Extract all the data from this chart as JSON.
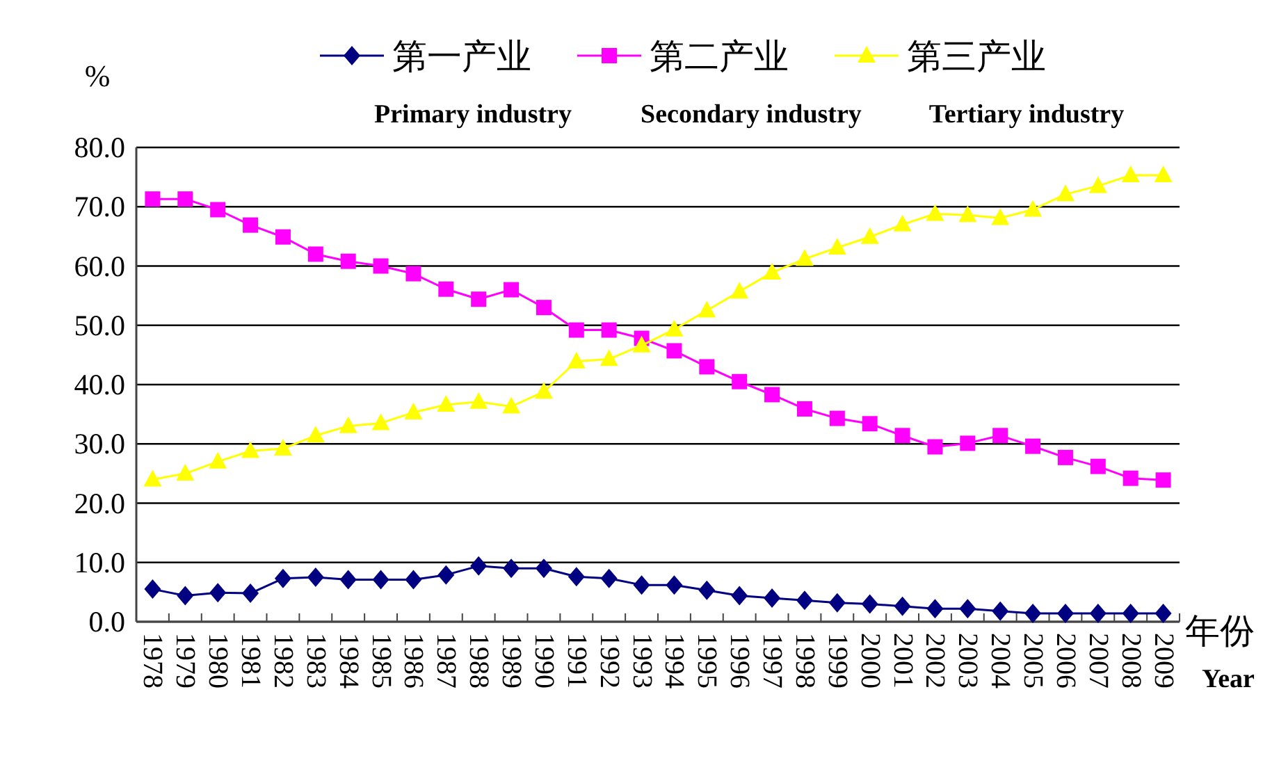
{
  "chart_data": {
    "type": "line",
    "ylabel": "%",
    "xlabel": "年份",
    "categories": [
      "1978",
      "1979",
      "1980",
      "1981",
      "1982",
      "1983",
      "1984",
      "1985",
      "1986",
      "1987",
      "1988",
      "1989",
      "1990",
      "1991",
      "1992",
      "1993",
      "1994",
      "1995",
      "1996",
      "1997",
      "1998",
      "1999",
      "2000",
      "2001",
      "2002",
      "2003",
      "2004",
      "2005",
      "2006",
      "2007",
      "2008",
      "2009"
    ],
    "series": [
      {
        "name": "第一产业",
        "color": "#000080",
        "marker": "diamond",
        "values": [
          5.5,
          4.4,
          4.9,
          4.8,
          7.3,
          7.5,
          7.1,
          7.1,
          7.1,
          7.9,
          9.4,
          9.0,
          9.0,
          7.6,
          7.3,
          6.2,
          6.2,
          5.3,
          4.4,
          4.0,
          3.6,
          3.2,
          3.0,
          2.6,
          2.2,
          2.2,
          1.8,
          1.4,
          1.4,
          1.4,
          1.4,
          1.4
        ]
      },
      {
        "name": "第二产业",
        "color": "#ff00ff",
        "marker": "square",
        "values": [
          71.3,
          71.3,
          69.5,
          66.9,
          64.9,
          62.0,
          60.8,
          60.0,
          58.7,
          56.1,
          54.4,
          56.0,
          53.0,
          49.2,
          49.2,
          47.8,
          45.7,
          43.0,
          40.5,
          38.3,
          35.9,
          34.3,
          33.4,
          31.4,
          29.5,
          30.1,
          31.4,
          29.6,
          27.7,
          26.2,
          24.2,
          23.9
        ]
      },
      {
        "name": "第三产业",
        "color": "#ffff00",
        "marker": "triangle",
        "values": [
          24.0,
          25.0,
          27.0,
          28.8,
          29.2,
          31.4,
          33.0,
          33.5,
          35.3,
          36.6,
          37.1,
          36.3,
          38.8,
          43.9,
          44.3,
          46.6,
          49.3,
          52.5,
          55.7,
          58.9,
          61.2,
          63.1,
          64.9,
          67.0,
          68.8,
          68.6,
          68.1,
          69.5,
          72.1,
          73.5,
          75.3,
          75.3
        ]
      }
    ],
    "ylim": [
      0,
      80
    ],
    "yticks": [
      {
        "value": 0,
        "label": "0.0"
      },
      {
        "value": 10,
        "label": "10.0"
      },
      {
        "value": 20,
        "label": "20.0"
      },
      {
        "value": 30,
        "label": "30.0"
      },
      {
        "value": 40,
        "label": "40.0"
      },
      {
        "value": 50,
        "label": "50.0"
      },
      {
        "value": 60,
        "label": "60.0"
      },
      {
        "value": 70,
        "label": "70.0"
      },
      {
        "value": 80,
        "label": "80.0"
      }
    ],
    "grid": "y",
    "legend": "top",
    "annotations": [
      "Primary industry",
      "Secondary industry",
      "Tertiary industry",
      "Year"
    ]
  }
}
